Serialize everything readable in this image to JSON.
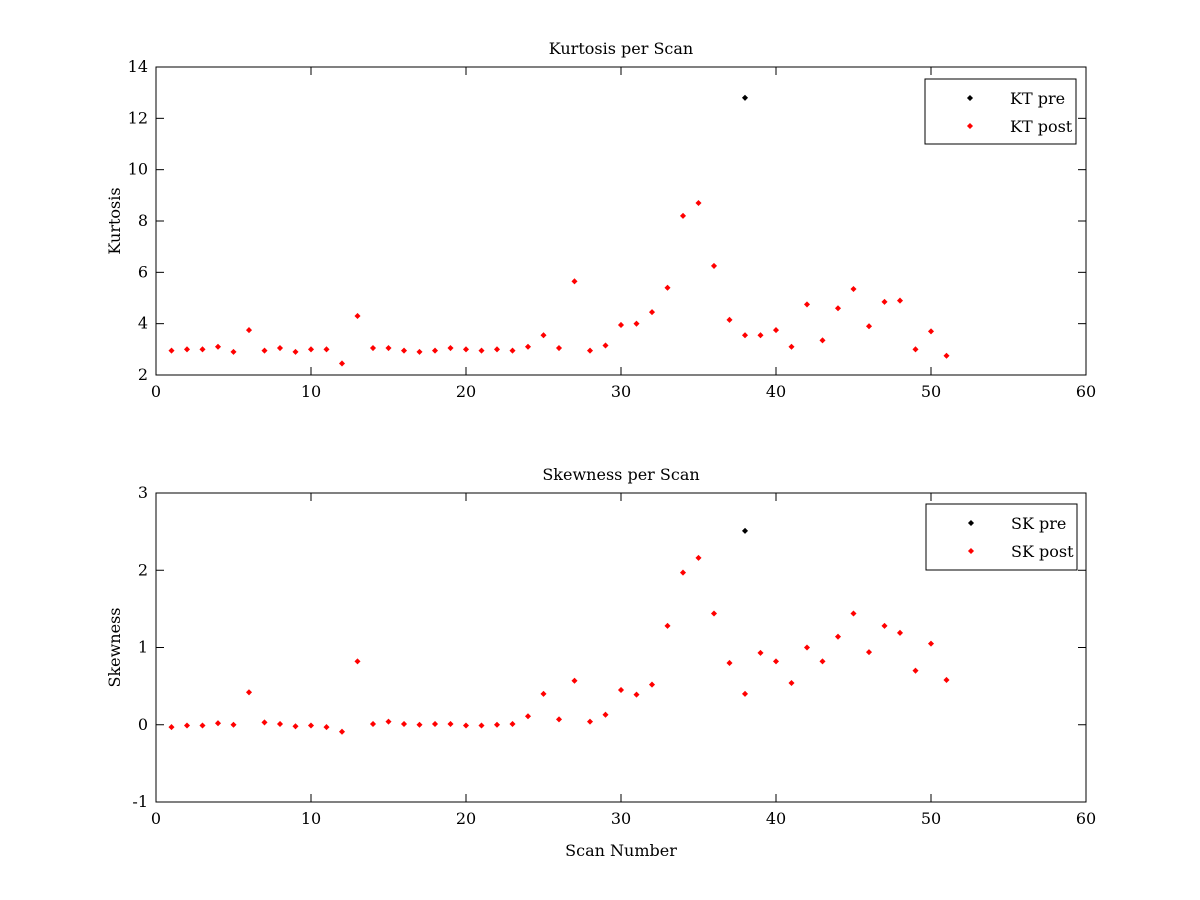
{
  "chart_data": [
    {
      "type": "scatter",
      "title": "Kurtosis per Scan",
      "xlabel": "",
      "ylabel": "Kurtosis",
      "xlim": [
        0,
        60
      ],
      "ylim": [
        2,
        14
      ],
      "xticks": [
        0,
        10,
        20,
        30,
        40,
        50,
        60
      ],
      "yticks": [
        2,
        4,
        6,
        8,
        10,
        12,
        14
      ],
      "grid": false,
      "legend_position": "top-right",
      "series": [
        {
          "name": "KT pre",
          "color": "#000000",
          "marker": "diamond",
          "points": [
            [
              38,
              12.8
            ]
          ]
        },
        {
          "name": "KT post",
          "color": "#ff0000",
          "marker": "diamond",
          "points": [
            [
              1,
              2.95
            ],
            [
              2,
              3.0
            ],
            [
              3,
              3.0
            ],
            [
              4,
              3.1
            ],
            [
              5,
              2.9
            ],
            [
              6,
              3.75
            ],
            [
              7,
              2.95
            ],
            [
              8,
              3.05
            ],
            [
              9,
              2.9
            ],
            [
              10,
              3.0
            ],
            [
              11,
              3.0
            ],
            [
              12,
              2.45
            ],
            [
              13,
              4.3
            ],
            [
              14,
              3.05
            ],
            [
              15,
              3.05
            ],
            [
              16,
              2.95
            ],
            [
              17,
              2.9
            ],
            [
              18,
              2.95
            ],
            [
              19,
              3.05
            ],
            [
              20,
              3.0
            ],
            [
              21,
              2.95
            ],
            [
              22,
              3.0
            ],
            [
              23,
              2.95
            ],
            [
              24,
              3.1
            ],
            [
              25,
              3.55
            ],
            [
              26,
              3.05
            ],
            [
              27,
              5.65
            ],
            [
              28,
              2.95
            ],
            [
              29,
              3.15
            ],
            [
              30,
              3.95
            ],
            [
              31,
              4.0
            ],
            [
              32,
              4.45
            ],
            [
              33,
              5.4
            ],
            [
              34,
              8.2
            ],
            [
              35,
              8.7
            ],
            [
              36,
              6.25
            ],
            [
              37,
              4.15
            ],
            [
              38,
              3.55
            ],
            [
              39,
              3.55
            ],
            [
              40,
              3.75
            ],
            [
              41,
              3.1
            ],
            [
              42,
              4.75
            ],
            [
              43,
              3.35
            ],
            [
              44,
              4.6
            ],
            [
              45,
              5.35
            ],
            [
              46,
              3.9
            ],
            [
              47,
              4.85
            ],
            [
              48,
              4.9
            ],
            [
              49,
              3.0
            ],
            [
              50,
              3.7
            ],
            [
              51,
              2.75
            ]
          ]
        }
      ]
    },
    {
      "type": "scatter",
      "title": "Skewness per Scan",
      "xlabel": "Scan Number",
      "ylabel": "Skewness",
      "xlim": [
        0,
        60
      ],
      "ylim": [
        -1,
        3
      ],
      "xticks": [
        0,
        10,
        20,
        30,
        40,
        50,
        60
      ],
      "yticks": [
        -1,
        0,
        1,
        2,
        3
      ],
      "grid": false,
      "legend_position": "top-right",
      "series": [
        {
          "name": "SK pre",
          "color": "#000000",
          "marker": "diamond",
          "points": [
            [
              38,
              2.51
            ]
          ]
        },
        {
          "name": "SK post",
          "color": "#ff0000",
          "marker": "diamond",
          "points": [
            [
              1,
              -0.03
            ],
            [
              2,
              -0.01
            ],
            [
              3,
              -0.01
            ],
            [
              4,
              0.02
            ],
            [
              5,
              0.0
            ],
            [
              6,
              0.42
            ],
            [
              7,
              0.03
            ],
            [
              8,
              0.01
            ],
            [
              9,
              -0.02
            ],
            [
              10,
              -0.01
            ],
            [
              11,
              -0.03
            ],
            [
              12,
              -0.09
            ],
            [
              13,
              0.82
            ],
            [
              14,
              0.01
            ],
            [
              15,
              0.04
            ],
            [
              16,
              0.01
            ],
            [
              17,
              0.0
            ],
            [
              18,
              0.01
            ],
            [
              19,
              0.01
            ],
            [
              20,
              -0.01
            ],
            [
              21,
              -0.01
            ],
            [
              22,
              0.0
            ],
            [
              23,
              0.01
            ],
            [
              24,
              0.11
            ],
            [
              25,
              0.4
            ],
            [
              26,
              0.07
            ],
            [
              27,
              0.57
            ],
            [
              28,
              0.04
            ],
            [
              29,
              0.13
            ],
            [
              30,
              0.45
            ],
            [
              31,
              0.39
            ],
            [
              32,
              0.52
            ],
            [
              33,
              1.28
            ],
            [
              34,
              1.97
            ],
            [
              35,
              2.16
            ],
            [
              36,
              1.44
            ],
            [
              37,
              0.8
            ],
            [
              38,
              0.4
            ],
            [
              39,
              0.93
            ],
            [
              40,
              0.82
            ],
            [
              41,
              0.54
            ],
            [
              42,
              1.0
            ],
            [
              43,
              0.82
            ],
            [
              44,
              1.14
            ],
            [
              45,
              1.44
            ],
            [
              46,
              0.94
            ],
            [
              47,
              1.28
            ],
            [
              48,
              1.19
            ],
            [
              49,
              0.7
            ],
            [
              50,
              1.05
            ],
            [
              51,
              0.58
            ]
          ]
        }
      ]
    }
  ]
}
